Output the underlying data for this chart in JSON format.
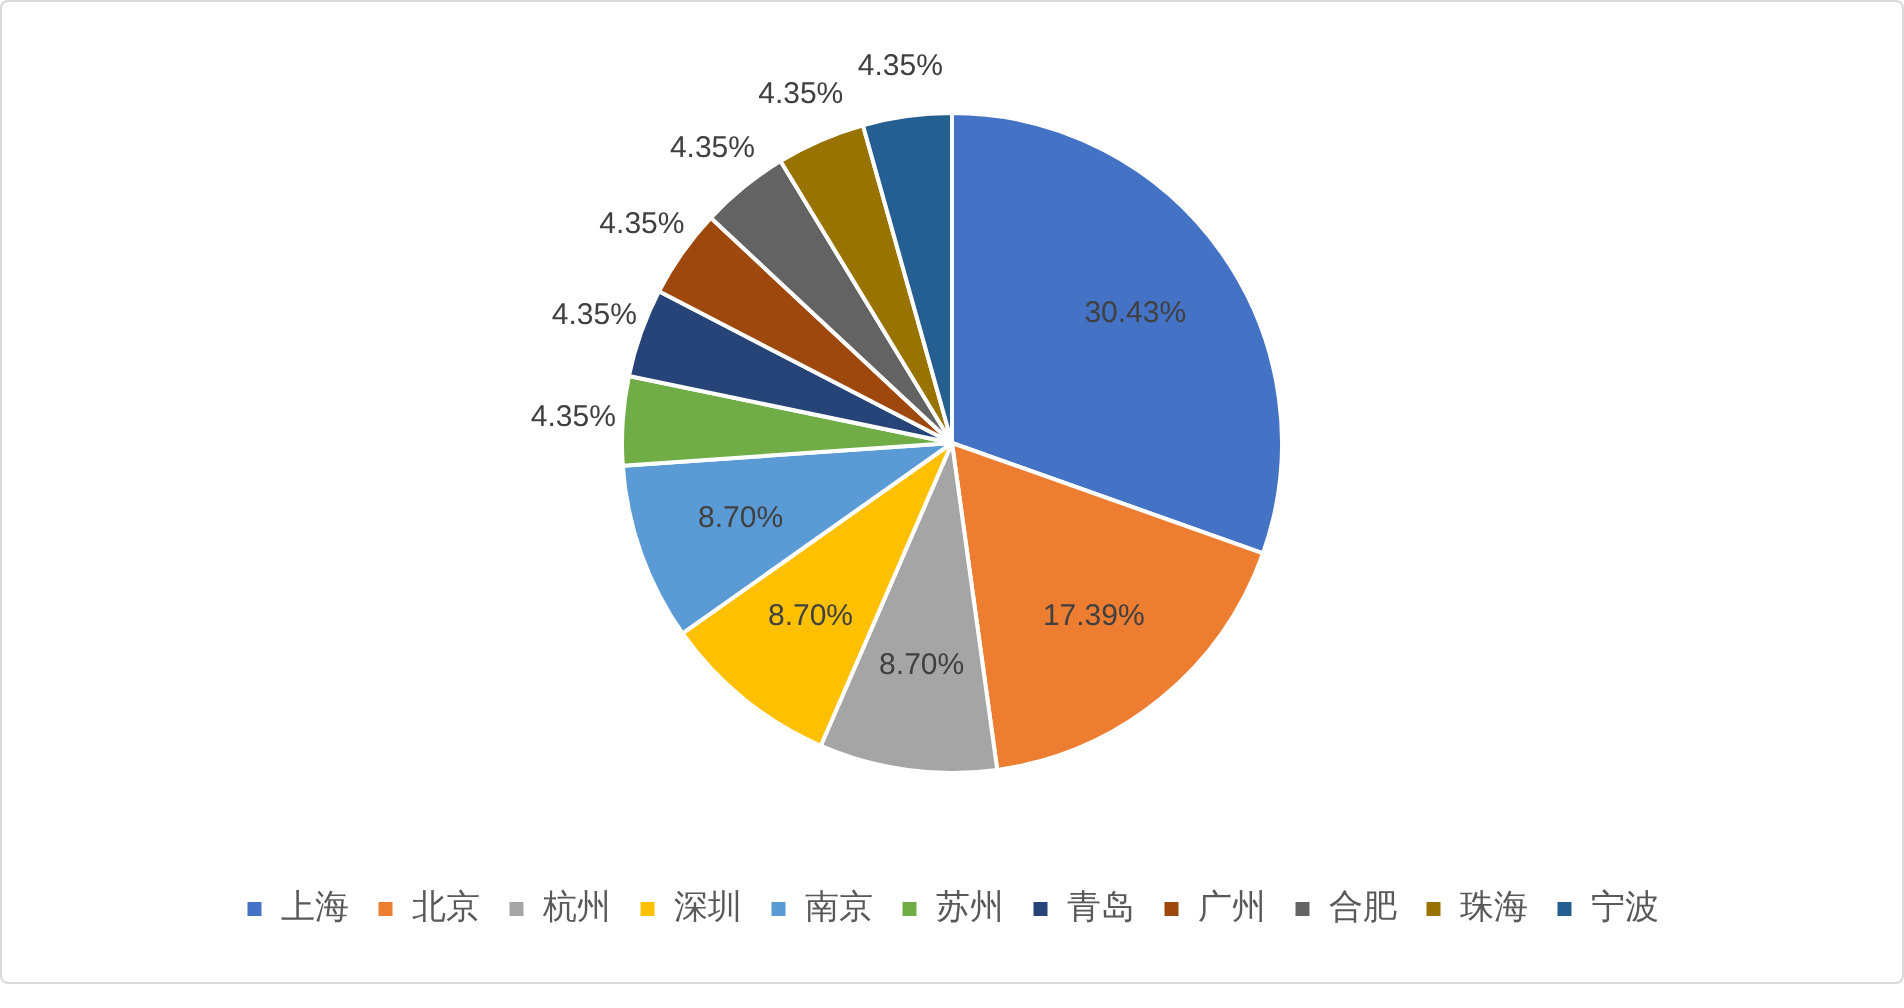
{
  "chart_data": {
    "type": "pie",
    "categories": [
      "上海",
      "北京",
      "杭州",
      "深圳",
      "南京",
      "苏州",
      "青岛",
      "广州",
      "合肥",
      "珠海",
      "宁波"
    ],
    "values": [
      30.43,
      17.39,
      8.7,
      8.7,
      8.7,
      4.35,
      4.35,
      4.35,
      4.35,
      4.35,
      4.35
    ],
    "value_labels": [
      "30.43%",
      "17.39%",
      "8.70%",
      "8.70%",
      "8.70%",
      "4.35%",
      "4.35%",
      "4.35%",
      "4.35%",
      "4.35%",
      "4.35%"
    ],
    "colors": [
      "#4472c4",
      "#ed7d31",
      "#a5a5a5",
      "#ffc000",
      "#5b9bd5",
      "#70ad47",
      "#264478",
      "#9e480e",
      "#636363",
      "#997300",
      "#255e91"
    ],
    "legend": "bottom"
  }
}
